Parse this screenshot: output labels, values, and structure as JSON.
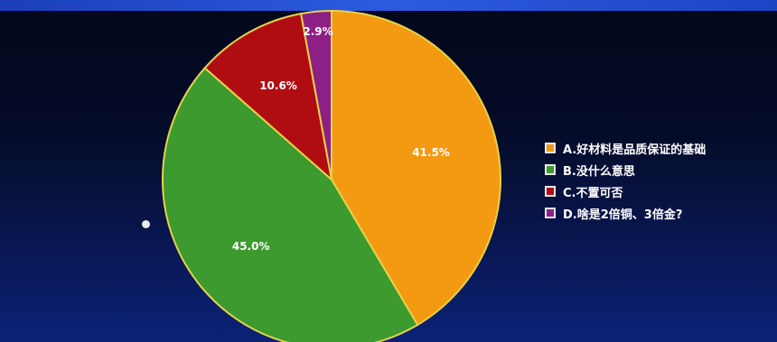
{
  "chart_data": {
    "type": "pie",
    "slices": [
      {
        "label": "A.好材料是品质保证的基础",
        "value": 41.5,
        "display": "41.5%",
        "color": "#f39a12"
      },
      {
        "label": "B.没什么意思",
        "value": 45.0,
        "display": "45.0%",
        "color": "#3c9a2e"
      },
      {
        "label": "C.不置可否",
        "value": 10.6,
        "display": "10.6%",
        "color": "#b00d12"
      },
      {
        "label": "D.啥是2倍铜、3倍金?",
        "value": 2.9,
        "display": "2.9%",
        "color": "#8e1f86"
      }
    ],
    "legend_position": "right"
  }
}
